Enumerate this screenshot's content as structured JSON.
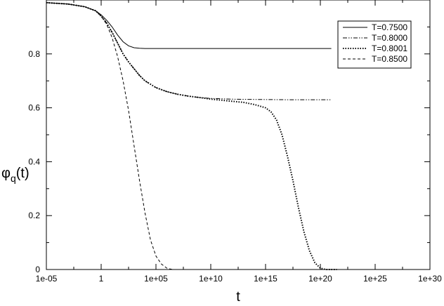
{
  "chart_data": {
    "type": "line",
    "xlabel": "t",
    "ylabel_main": "φ",
    "ylabel_sub": "q",
    "ylabel_arg": "(t)",
    "xscale": "log",
    "xlim_log10": [
      -5,
      30
    ],
    "ylim": [
      0,
      1
    ],
    "x_ticks": [
      {
        "log10": -5,
        "label": "1e-05"
      },
      {
        "log10": 0,
        "label": "1"
      },
      {
        "log10": 5,
        "label": "1e+05"
      },
      {
        "log10": 10,
        "label": "1e+10"
      },
      {
        "log10": 15,
        "label": "1e+15"
      },
      {
        "log10": 20,
        "label": "1e+20"
      },
      {
        "log10": 25,
        "label": "1e+25"
      },
      {
        "log10": 30,
        "label": "1e+30"
      }
    ],
    "y_ticks": [
      {
        "value": 0,
        "label": "0"
      },
      {
        "value": 0.2,
        "label": "0.2"
      },
      {
        "value": 0.4,
        "label": "0.4"
      },
      {
        "value": 0.6,
        "label": "0.6"
      },
      {
        "value": 0.8,
        "label": "0.8"
      }
    ],
    "grid": false,
    "legend_position": "top-right",
    "series": [
      {
        "name": "T=0.7500",
        "dash": "solid",
        "points_log10t": [
          [
            -5,
            0.99
          ],
          [
            -3,
            0.985
          ],
          [
            -1.5,
            0.975
          ],
          [
            -0.5,
            0.96
          ],
          [
            0,
            0.945
          ],
          [
            0.5,
            0.925
          ],
          [
            1,
            0.9
          ],
          [
            1.5,
            0.87
          ],
          [
            2,
            0.845
          ],
          [
            2.5,
            0.83
          ],
          [
            3,
            0.823
          ],
          [
            3.5,
            0.821
          ],
          [
            4,
            0.82
          ],
          [
            6,
            0.82
          ],
          [
            10,
            0.82
          ],
          [
            15,
            0.82
          ],
          [
            21,
            0.82
          ]
        ]
      },
      {
        "name": "T=0.8000",
        "dash": "dash-dot-dot",
        "points_log10t": [
          [
            -5,
            0.99
          ],
          [
            -3,
            0.985
          ],
          [
            -1.5,
            0.975
          ],
          [
            -0.5,
            0.96
          ],
          [
            0,
            0.94
          ],
          [
            0.5,
            0.915
          ],
          [
            1,
            0.88
          ],
          [
            1.5,
            0.84
          ],
          [
            2,
            0.8
          ],
          [
            2.5,
            0.77
          ],
          [
            3,
            0.745
          ],
          [
            3.5,
            0.72
          ],
          [
            4,
            0.7
          ],
          [
            5,
            0.675
          ],
          [
            6,
            0.66
          ],
          [
            7,
            0.65
          ],
          [
            8,
            0.643
          ],
          [
            9,
            0.638
          ],
          [
            10,
            0.635
          ],
          [
            12,
            0.632
          ],
          [
            14,
            0.631
          ],
          [
            17,
            0.63
          ],
          [
            21,
            0.63
          ]
        ]
      },
      {
        "name": "T=0.8001",
        "dash": "dotted",
        "points_log10t": [
          [
            -5,
            0.99
          ],
          [
            -3,
            0.985
          ],
          [
            -1.5,
            0.975
          ],
          [
            -0.5,
            0.96
          ],
          [
            0,
            0.94
          ],
          [
            0.5,
            0.915
          ],
          [
            1,
            0.88
          ],
          [
            1.5,
            0.84
          ],
          [
            2,
            0.8
          ],
          [
            2.5,
            0.77
          ],
          [
            3,
            0.745
          ],
          [
            3.5,
            0.72
          ],
          [
            4,
            0.7
          ],
          [
            5,
            0.675
          ],
          [
            6,
            0.66
          ],
          [
            7,
            0.65
          ],
          [
            8,
            0.643
          ],
          [
            9,
            0.638
          ],
          [
            10,
            0.632
          ],
          [
            11,
            0.628
          ],
          [
            12,
            0.624
          ],
          [
            13,
            0.62
          ],
          [
            14,
            0.612
          ],
          [
            15,
            0.6
          ],
          [
            15.5,
            0.585
          ],
          [
            16,
            0.555
          ],
          [
            16.5,
            0.5
          ],
          [
            17,
            0.42
          ],
          [
            17.5,
            0.33
          ],
          [
            18,
            0.23
          ],
          [
            18.5,
            0.14
          ],
          [
            19,
            0.07
          ],
          [
            19.5,
            0.025
          ],
          [
            20,
            0.005
          ],
          [
            20.5,
            0.0
          ],
          [
            21.5,
            0.0
          ]
        ]
      },
      {
        "name": "T=0.8500",
        "dash": "dashed",
        "points_log10t": [
          [
            -5,
            0.99
          ],
          [
            -3,
            0.985
          ],
          [
            -1.5,
            0.975
          ],
          [
            -0.5,
            0.96
          ],
          [
            0,
            0.94
          ],
          [
            0.5,
            0.91
          ],
          [
            1,
            0.86
          ],
          [
            1.5,
            0.79
          ],
          [
            2,
            0.7
          ],
          [
            2.5,
            0.59
          ],
          [
            3,
            0.46
          ],
          [
            3.5,
            0.33
          ],
          [
            4,
            0.21
          ],
          [
            4.5,
            0.11
          ],
          [
            5,
            0.05
          ],
          [
            5.5,
            0.02
          ],
          [
            6,
            0.005
          ],
          [
            6.5,
            0.0
          ],
          [
            7.5,
            0.0
          ]
        ]
      }
    ]
  }
}
